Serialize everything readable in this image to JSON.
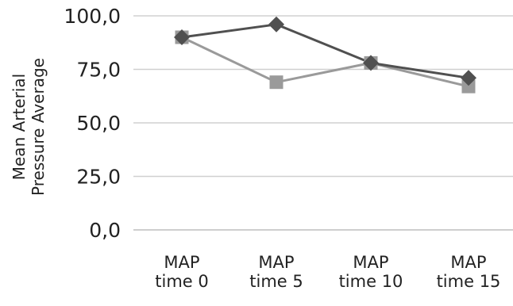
{
  "chart_data": {
    "type": "line",
    "title": "",
    "xlabel": "",
    "ylabel_lines": [
      "Mean Arterial",
      "Pressure Average"
    ],
    "categories": [
      [
        "MAP",
        "time 0"
      ],
      [
        "MAP",
        "time 5"
      ],
      [
        "MAP",
        "time 10"
      ],
      [
        "MAP",
        "time 15"
      ]
    ],
    "y_ticks": [
      {
        "value": 0,
        "label": "0,0"
      },
      {
        "value": 25,
        "label": "25,0"
      },
      {
        "value": 50,
        "label": "50,0"
      },
      {
        "value": 75,
        "label": "75,0"
      },
      {
        "value": 100,
        "label": "100,0"
      }
    ],
    "ylim": [
      0,
      100
    ],
    "grid": true,
    "legend": "none",
    "series": [
      {
        "marker": "diamond",
        "color": "#505050",
        "values": [
          90,
          96,
          78,
          71
        ]
      },
      {
        "marker": "square",
        "color": "#9a9a9a",
        "values": [
          90,
          69,
          78,
          67
        ]
      }
    ]
  }
}
